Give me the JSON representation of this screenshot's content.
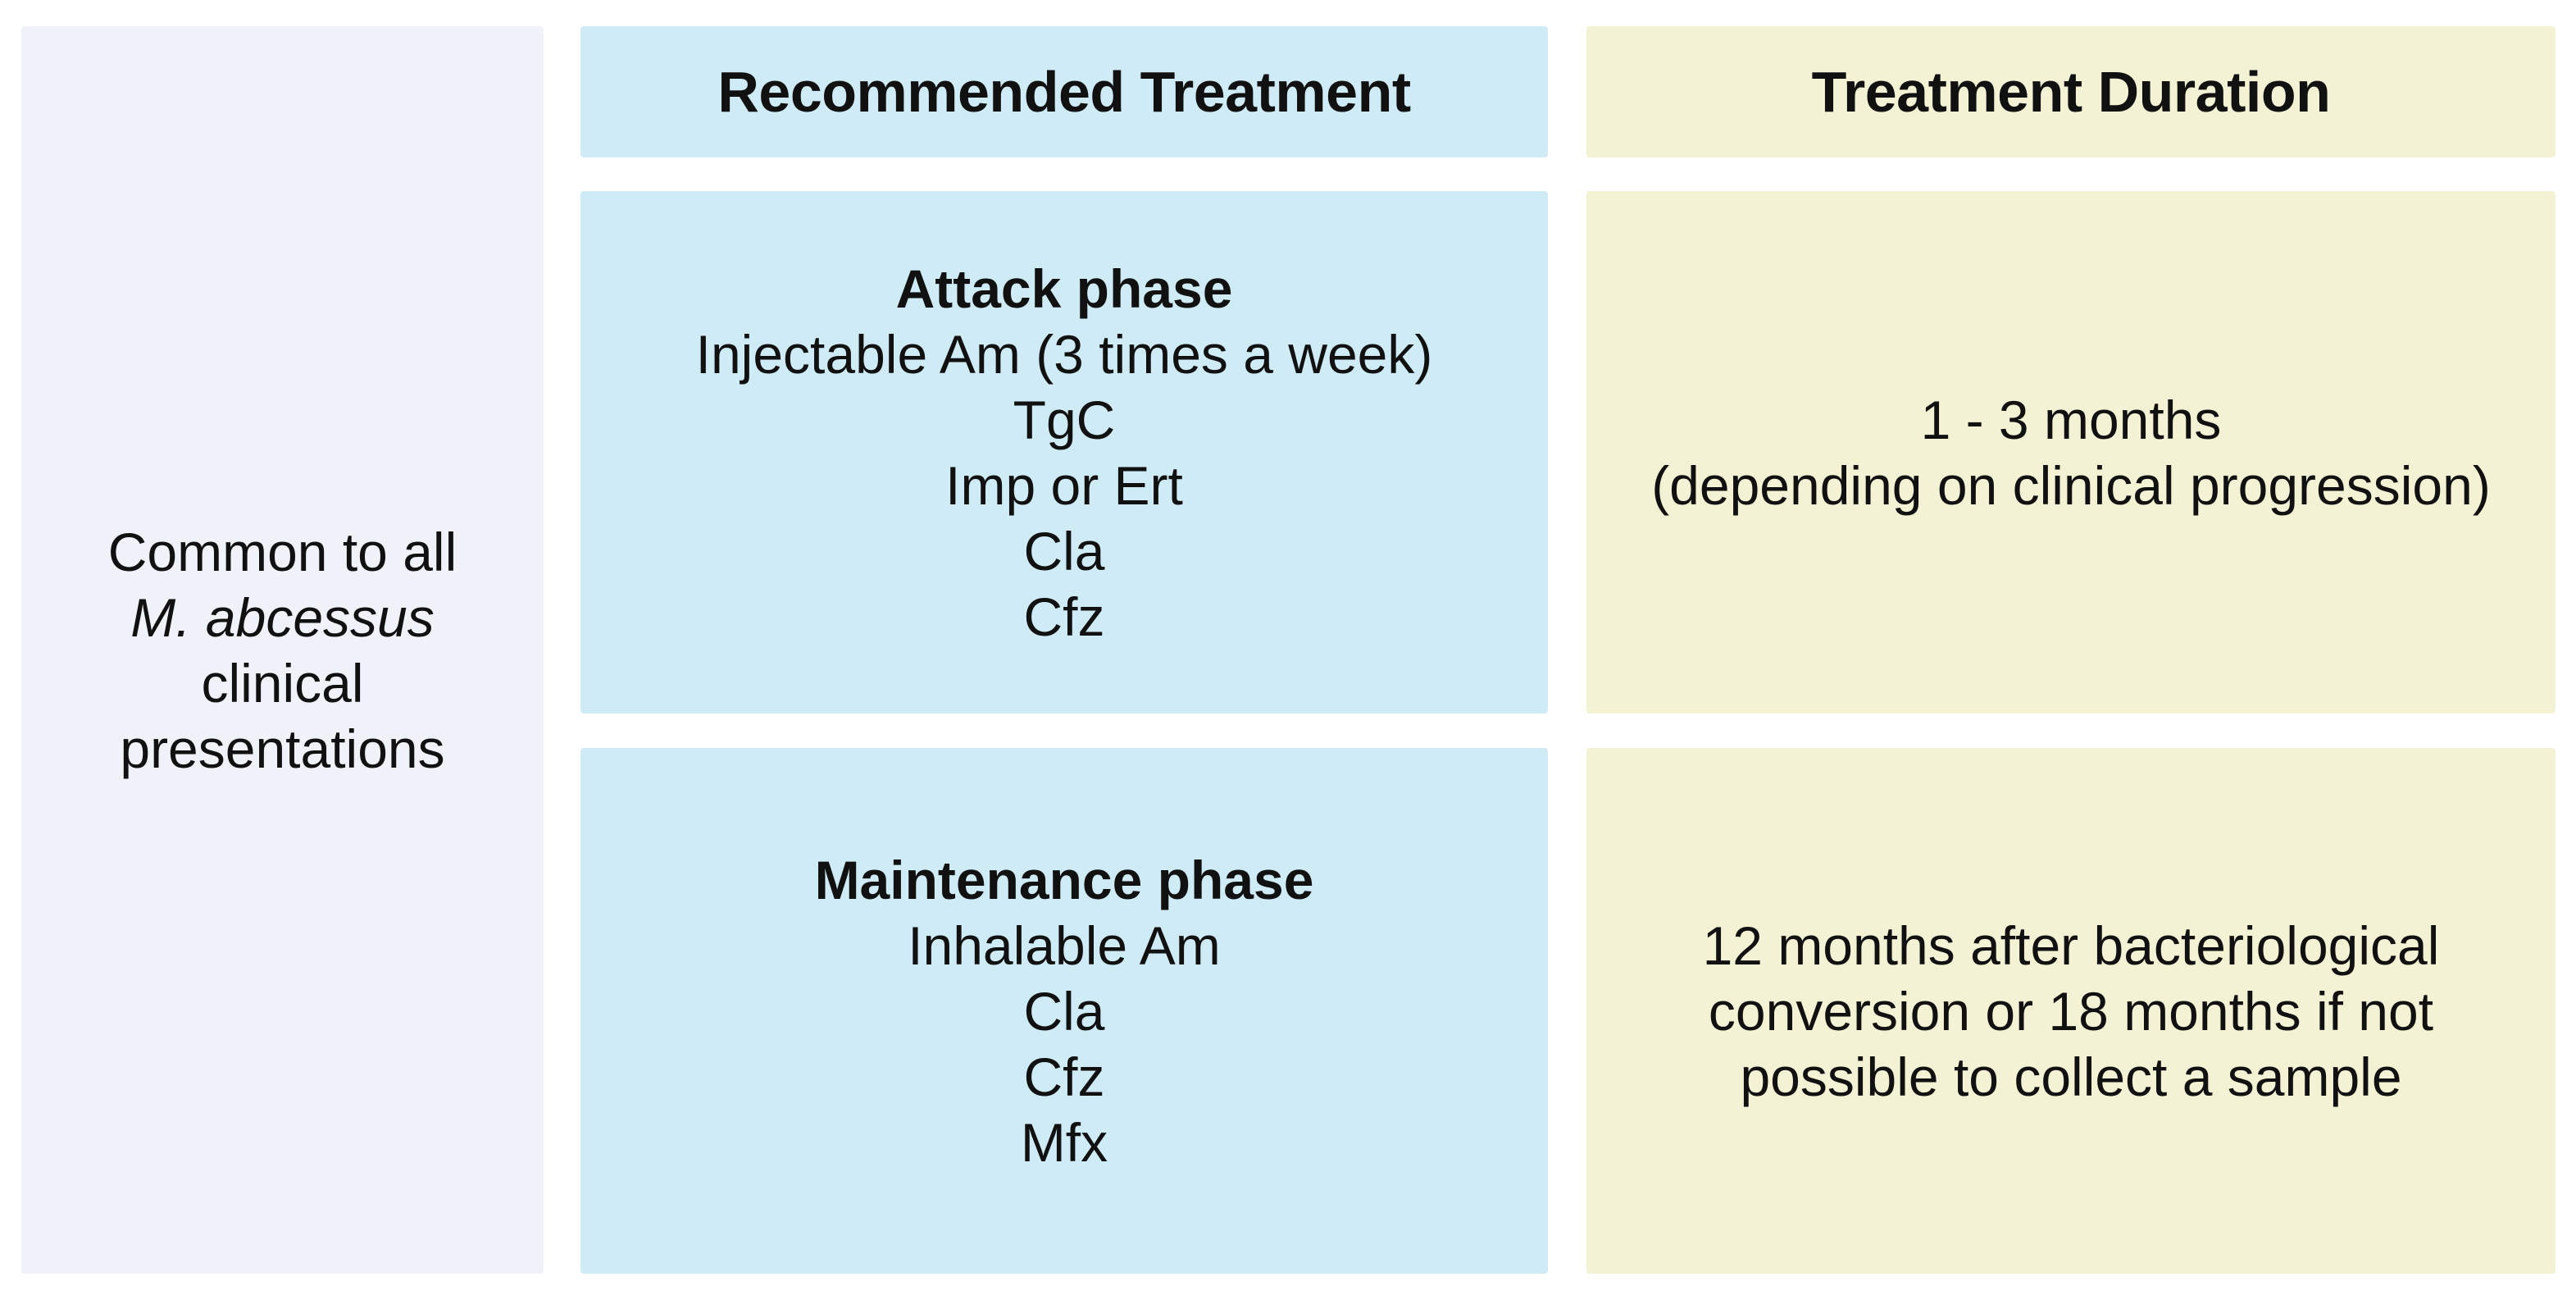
{
  "figure": {
    "colors": {
      "background": "#ffffff",
      "row_header_bg": "#eff3f9",
      "treatment_bg": "#cfecf6",
      "duration_bg": "#f4f2d5",
      "text": "#111111"
    },
    "row_header": {
      "lines": [
        "Common to all",
        "M. abcessus",
        "clinical",
        "presentations"
      ],
      "italic_line": "M. abcessus"
    },
    "column_headers": {
      "treatment": "Recommended Treatment",
      "duration": "Treatment Duration"
    },
    "rows": [
      {
        "treatment": {
          "title": "Attack phase",
          "lines": [
            "Injectable Am (3 times a week)",
            "TgC",
            "Imp or Ert",
            "Cla",
            "Cfz"
          ]
        },
        "duration": {
          "lines": [
            "1 - 3 months",
            "(depending on clinical progression)"
          ]
        }
      },
      {
        "treatment": {
          "title": "Maintenance phase",
          "lines": [
            "Inhalable Am",
            "Cla",
            "Cfz",
            "Mfx"
          ]
        },
        "duration": {
          "lines": [
            "12 months after bacteriological",
            "conversion or 18 months if not",
            "possible to collect a sample"
          ]
        }
      }
    ]
  }
}
